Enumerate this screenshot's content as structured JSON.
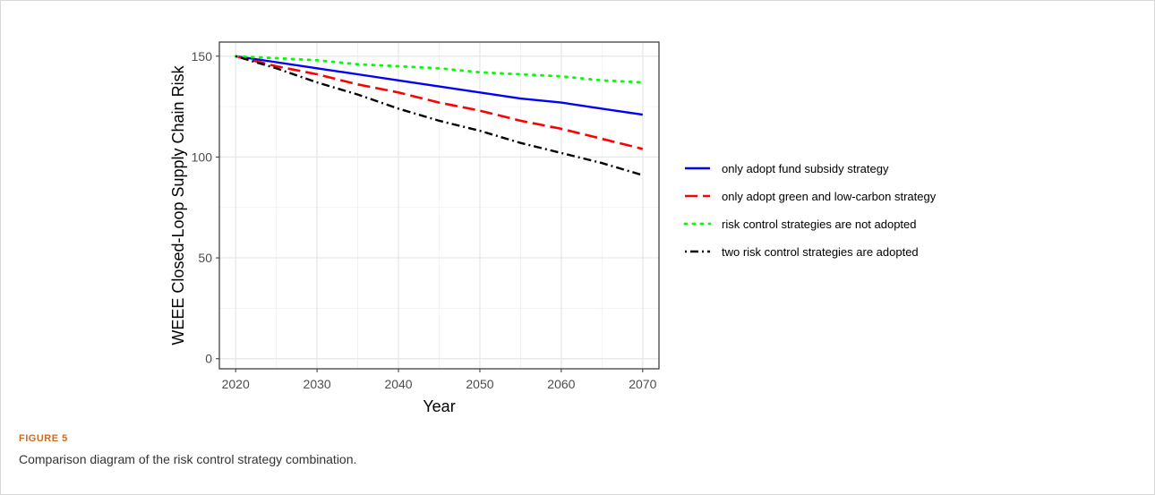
{
  "figure": {
    "label": "FIGURE 5",
    "caption": "Comparison diagram of the risk control strategy combination."
  },
  "chart_data": {
    "type": "line",
    "xlabel": "Year",
    "ylabel": "WEEE Closed-Loop Supply Chain Risk",
    "xlim": [
      2018,
      2072
    ],
    "ylim": [
      -5,
      157
    ],
    "x_ticks": [
      2020,
      2030,
      2040,
      2050,
      2060,
      2070
    ],
    "y_ticks": [
      0,
      50,
      100,
      150
    ],
    "grid": true,
    "legend_position": "right",
    "x": [
      2020,
      2025,
      2030,
      2035,
      2040,
      2045,
      2050,
      2055,
      2060,
      2065,
      2070
    ],
    "series": [
      {
        "name": "only adopt fund subsidy strategy",
        "color": "#0000ff",
        "dash": "solid",
        "values": [
          150,
          147,
          144,
          141,
          138,
          135,
          132,
          129,
          127,
          124,
          121
        ]
      },
      {
        "name": "only adopt green and low-carbon strategy",
        "color": "#ff0000",
        "dash": "longdash",
        "values": [
          150,
          145,
          141,
          136,
          132,
          127,
          123,
          118,
          114,
          109,
          104
        ]
      },
      {
        "name": "risk control strategies are not adopted",
        "color": "#00ff00",
        "dash": "dotted",
        "values": [
          150,
          149,
          148,
          146,
          145,
          144,
          142,
          141,
          140,
          138,
          137
        ]
      },
      {
        "name": "two risk control strategies are adopted",
        "color": "#000000",
        "dash": "dotdash",
        "values": [
          150,
          144,
          137,
          131,
          124,
          118,
          113,
          107,
          102,
          97,
          91
        ]
      }
    ]
  }
}
